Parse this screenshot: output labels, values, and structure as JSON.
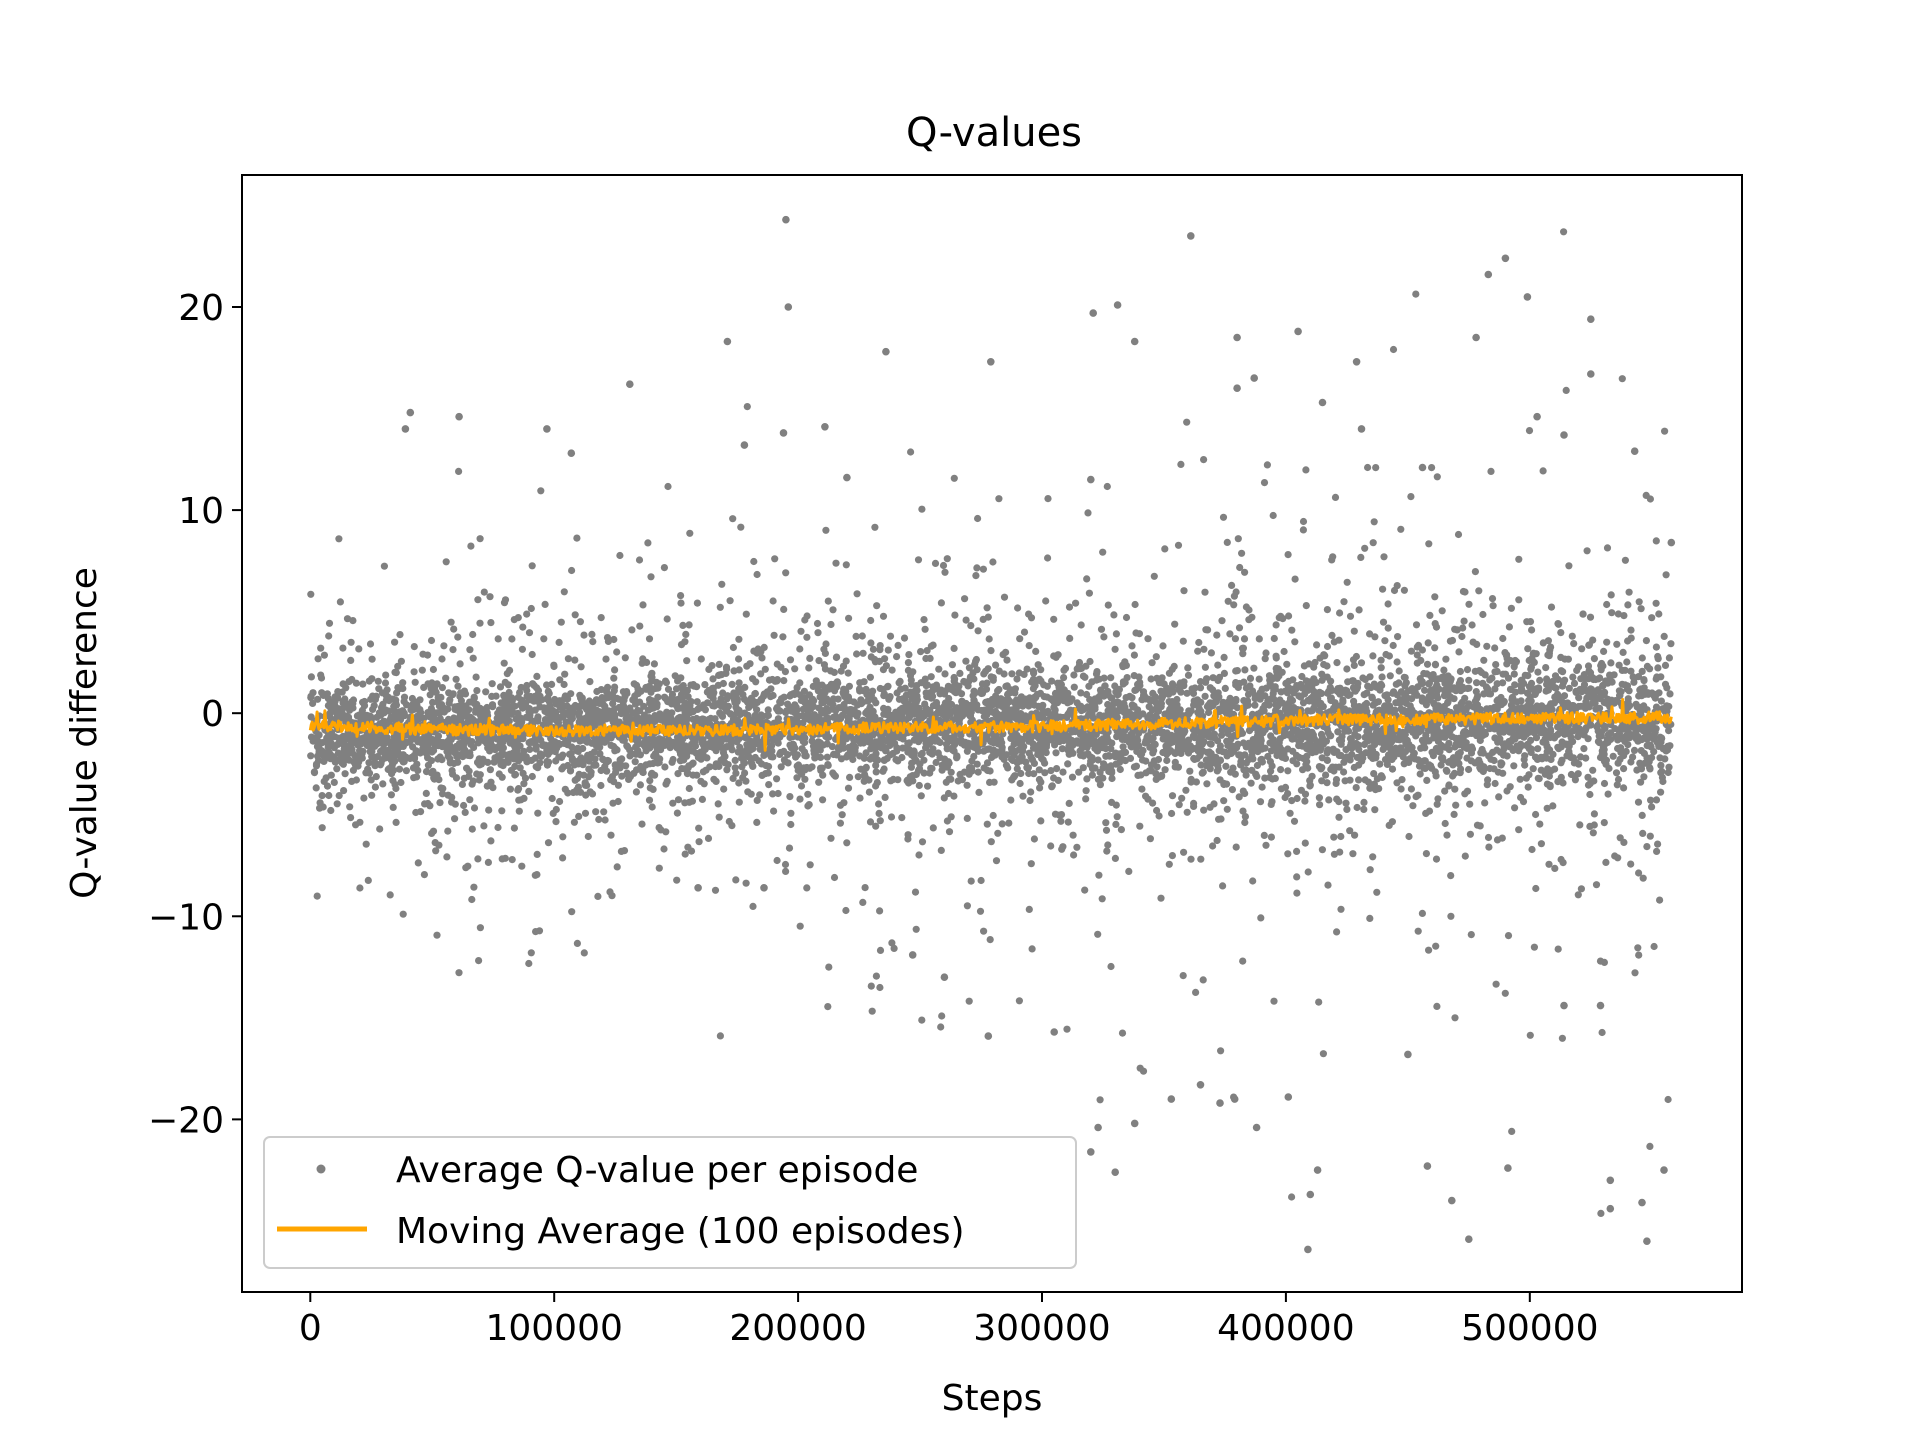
{
  "chart_data": {
    "type": "scatter",
    "title": "Q-values",
    "xlabel": "Steps",
    "ylabel": "Q-value difference",
    "xlim": [
      -28000,
      587000
    ],
    "ylim": [
      -28.5,
      26.5
    ],
    "xticks": [
      0,
      100000,
      200000,
      300000,
      400000,
      500000
    ],
    "xtick_labels": [
      "0",
      "100000",
      "200000",
      "300000",
      "400000",
      "500000"
    ],
    "yticks": [
      -20,
      -10,
      0,
      10,
      20
    ],
    "ytick_labels": [
      "−20",
      "−10",
      "0",
      "10",
      "20"
    ],
    "grid": false,
    "legend_position": "lower-left",
    "series": [
      {
        "name": "Average Q-value per episode",
        "kind": "scatter",
        "color": "#808080",
        "x_range": [
          0,
          558000
        ],
        "center_y": -0.8,
        "core_spread": [
          -3.5,
          3.5
        ],
        "min_y": -26.4,
        "max_y": 24.3,
        "notable_points": [
          {
            "x": 195000,
            "y": 24.3
          },
          {
            "x": 361000,
            "y": 23.5
          },
          {
            "x": 490000,
            "y": 22.4
          },
          {
            "x": 483000,
            "y": 21.6
          },
          {
            "x": 499000,
            "y": 20.5
          },
          {
            "x": 331000,
            "y": 20.1
          },
          {
            "x": 196000,
            "y": 20.0
          },
          {
            "x": 321000,
            "y": 19.7
          },
          {
            "x": 525000,
            "y": 19.4
          },
          {
            "x": 405000,
            "y": 18.8
          },
          {
            "x": 380000,
            "y": 18.5
          },
          {
            "x": 478000,
            "y": 18.5
          },
          {
            "x": 171000,
            "y": 18.3
          },
          {
            "x": 338000,
            "y": 18.3
          },
          {
            "x": 236000,
            "y": 17.8
          },
          {
            "x": 279000,
            "y": 17.3
          },
          {
            "x": 429000,
            "y": 17.3
          },
          {
            "x": 525000,
            "y": 16.7
          },
          {
            "x": 387000,
            "y": 16.5
          },
          {
            "x": 131000,
            "y": 16.2
          },
          {
            "x": 380000,
            "y": 16.0
          },
          {
            "x": 415000,
            "y": 15.3
          },
          {
            "x": 41000,
            "y": 14.8
          },
          {
            "x": 61000,
            "y": 14.6
          },
          {
            "x": 503000,
            "y": 14.6
          },
          {
            "x": 211000,
            "y": 14.1
          },
          {
            "x": 97000,
            "y": 14.0
          },
          {
            "x": 39000,
            "y": 14.0
          },
          {
            "x": 431000,
            "y": 14.0
          },
          {
            "x": 194000,
            "y": 13.8
          },
          {
            "x": 514000,
            "y": 13.7
          },
          {
            "x": 178000,
            "y": 13.2
          },
          {
            "x": 543000,
            "y": 12.9
          },
          {
            "x": 107000,
            "y": 12.8
          },
          {
            "x": 456000,
            "y": 12.1
          },
          {
            "x": 220000,
            "y": 11.6
          },
          {
            "x": 320000,
            "y": 11.5
          },
          {
            "x": 558000,
            "y": 8.4
          },
          {
            "x": 409000,
            "y": -26.4
          },
          {
            "x": 548000,
            "y": -26.0
          },
          {
            "x": 475000,
            "y": -25.9
          },
          {
            "x": 533000,
            "y": -24.4
          },
          {
            "x": 468000,
            "y": -24.0
          },
          {
            "x": 546000,
            "y": -24.1
          },
          {
            "x": 410000,
            "y": -23.7
          },
          {
            "x": 533000,
            "y": -23.0
          },
          {
            "x": 330000,
            "y": -22.6
          },
          {
            "x": 555000,
            "y": -22.5
          },
          {
            "x": 458000,
            "y": -22.3
          },
          {
            "x": 491000,
            "y": -22.4
          },
          {
            "x": 413000,
            "y": -22.5
          },
          {
            "x": 320000,
            "y": -21.6
          },
          {
            "x": 323000,
            "y": -20.4
          },
          {
            "x": 338000,
            "y": -20.2
          },
          {
            "x": 388000,
            "y": -20.4
          },
          {
            "x": 401000,
            "y": -18.9
          },
          {
            "x": 450000,
            "y": -16.8
          },
          {
            "x": 305000,
            "y": -15.7
          },
          {
            "x": 278000,
            "y": -15.9
          },
          {
            "x": 529000,
            "y": -14.4
          },
          {
            "x": 514000,
            "y": -14.4
          },
          {
            "x": 353000,
            "y": -19.0
          },
          {
            "x": 373000,
            "y": -19.2
          },
          {
            "x": 379000,
            "y": -19.0
          },
          {
            "x": 365000,
            "y": -18.3
          },
          {
            "x": 247000,
            "y": -11.9
          },
          {
            "x": 260000,
            "y": -13.0
          },
          {
            "x": 159000,
            "y": -8.6
          },
          {
            "x": 186000,
            "y": -8.6
          }
        ]
      },
      {
        "name": "Moving Average (100 episodes)",
        "kind": "line",
        "color": "#ffa500",
        "x": [
          0,
          50000,
          100000,
          150000,
          200000,
          250000,
          300000,
          350000,
          400000,
          450000,
          500000,
          558000
        ],
        "y": [
          -0.6,
          -0.8,
          -0.85,
          -0.85,
          -0.8,
          -0.7,
          -0.65,
          -0.5,
          -0.35,
          -0.3,
          -0.25,
          -0.2
        ]
      }
    ]
  }
}
